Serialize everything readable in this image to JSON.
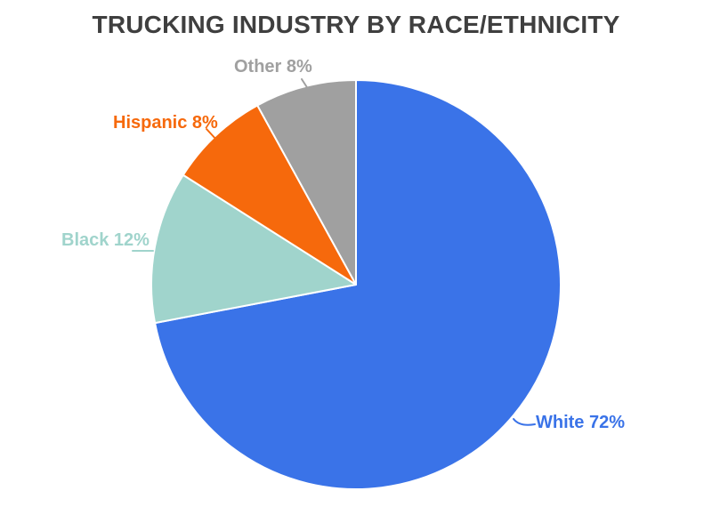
{
  "title": "TRUCKING INDUSTRY BY RACE/ETHNICITY",
  "colors": {
    "background": "#ffffff",
    "title_text": "#3f3f3f",
    "slice_separator": "#ffffff"
  },
  "chart_data": {
    "type": "pie",
    "title": "TRUCKING INDUSTRY BY RACE/ETHNICITY",
    "unit": "%",
    "start_angle_deg": 0,
    "direction": "clockwise",
    "legend_position": "none",
    "labels_style": "outside-callouts",
    "slices": [
      {
        "label": "White",
        "value": 72,
        "color": "#3a73e8",
        "label_text": "White 72%"
      },
      {
        "label": "Black",
        "value": 12,
        "color": "#a0d4cc",
        "label_text": "Black 12%"
      },
      {
        "label": "Hispanic",
        "value": 8,
        "color": "#f6690c",
        "label_text": "Hispanic 8%"
      },
      {
        "label": "Other",
        "value": 8,
        "color": "#a0a0a0",
        "label_text": "Other 8%"
      }
    ]
  }
}
